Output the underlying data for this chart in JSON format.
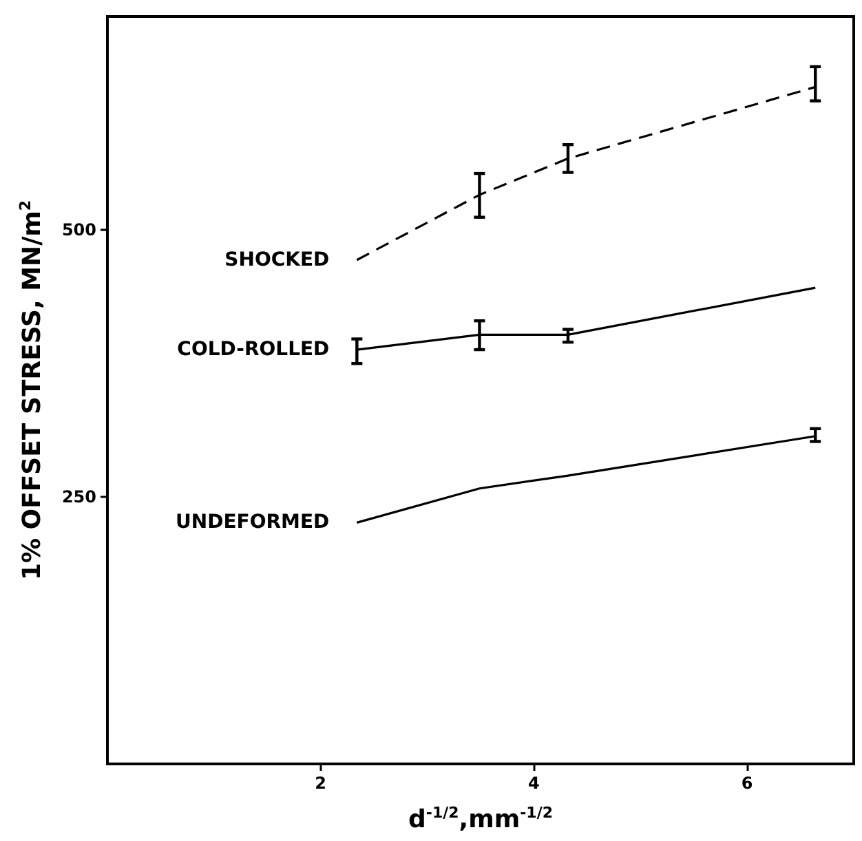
{
  "chart_data": {
    "type": "line",
    "xlabel": "d$^{-1/2}$,mm$^{-1/2}$",
    "ylabel": "1% OFFSET STRESS, MN/m$^{2}$",
    "xlim": [
      0,
      7
    ],
    "xticks": [
      2,
      4,
      6
    ],
    "ylim": [
      0,
      700
    ],
    "yticks": [
      250,
      500
    ],
    "grid": false,
    "legend": false,
    "marker": "none",
    "series": [
      {
        "name": "SHOCKED",
        "color": "#000000",
        "line_style": "dashed",
        "x": [
          2.34,
          3.49,
          4.32,
          6.64
        ],
        "values": [
          472,
          533,
          567,
          634
        ],
        "errors": [
          null,
          [
            512,
            553
          ],
          [
            554,
            580
          ],
          [
            621,
            653
          ]
        ]
      },
      {
        "name": "COLD-ROLLED",
        "color": "#000000",
        "line_style": "solid",
        "x": [
          2.34,
          3.49,
          4.32,
          6.64
        ],
        "values": [
          388,
          402,
          402,
          446
        ],
        "errors": [
          [
            375,
            398
          ],
          [
            388,
            415
          ],
          [
            395,
            407
          ],
          null
        ]
      },
      {
        "name": "UNDEFORMED",
        "color": "#000000",
        "line_style": "solid",
        "x": [
          2.34,
          3.49,
          4.32,
          6.64
        ],
        "values": [
          226,
          258,
          270,
          307
        ],
        "errors": [
          null,
          null,
          null,
          [
            302,
            314
          ]
        ]
      }
    ]
  }
}
